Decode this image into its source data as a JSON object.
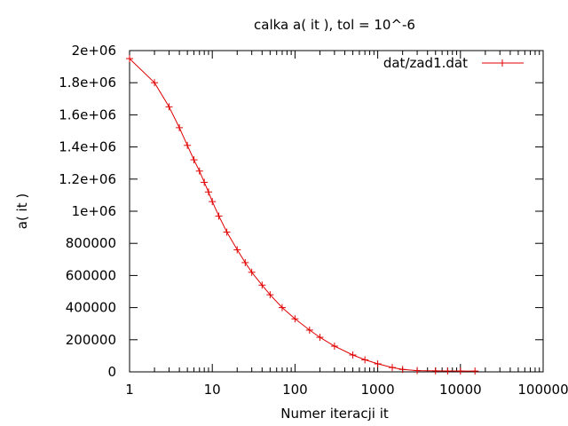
{
  "chart_data": {
    "type": "line",
    "title": "calka a( it ), tol = 10^-6",
    "xlabel": "Numer iteracji it",
    "ylabel": "a( it )",
    "x_scale": "log",
    "xlim": [
      1,
      100000
    ],
    "ylim": [
      0,
      2000000
    ],
    "x_ticks": [
      1,
      10,
      100,
      1000,
      10000,
      100000
    ],
    "x_tick_labels": [
      "1",
      "10",
      "100",
      "1000",
      "10000",
      "100000"
    ],
    "y_ticks": [
      0,
      200000,
      400000,
      600000,
      800000,
      1000000,
      1200000,
      1400000,
      1600000,
      1800000,
      2000000
    ],
    "y_tick_labels": [
      "0",
      "200000",
      "400000",
      "600000",
      "800000",
      "1e+06",
      "1.2e+06",
      "1.4e+06",
      "1.6e+06",
      "1.8e+06",
      "2e+06"
    ],
    "legend_position": "top-right",
    "grid": false,
    "series": [
      {
        "name": "dat/zad1.dat",
        "color": "#e00000",
        "x": [
          1,
          2,
          3,
          4,
          5,
          6,
          7,
          8,
          9,
          10,
          12,
          15,
          20,
          25,
          30,
          40,
          50,
          70,
          100,
          150,
          200,
          300,
          500,
          700,
          1000,
          1500,
          2000,
          3000,
          5000,
          7000,
          10000,
          15000
        ],
        "y": [
          1950000,
          1800000,
          1650000,
          1520000,
          1410000,
          1320000,
          1250000,
          1180000,
          1120000,
          1060000,
          970000,
          870000,
          760000,
          680000,
          620000,
          540000,
          480000,
          400000,
          330000,
          260000,
          215000,
          160000,
          105000,
          75000,
          50000,
          27000,
          15000,
          8000,
          6000,
          5500,
          5200,
          5000
        ]
      }
    ]
  }
}
